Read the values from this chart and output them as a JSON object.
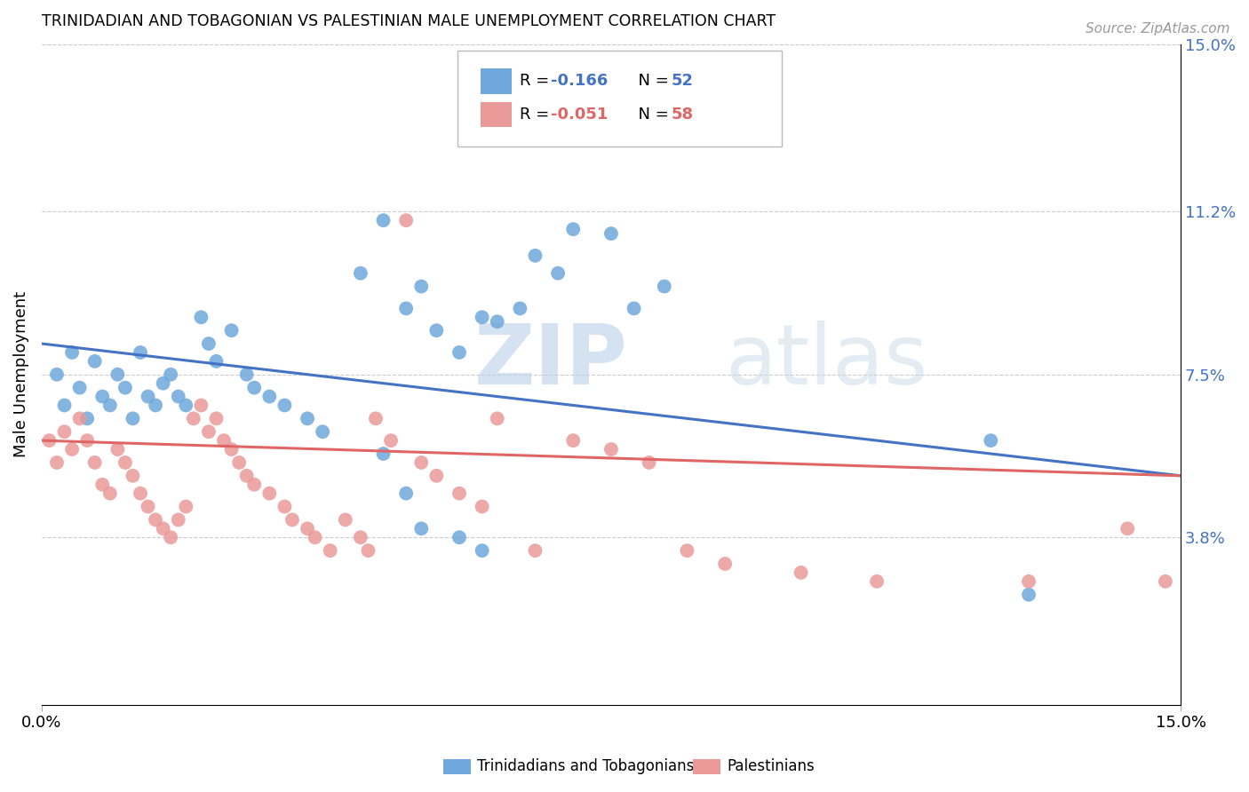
{
  "title": "TRINIDADIAN AND TOBAGONIAN VS PALESTINIAN MALE UNEMPLOYMENT CORRELATION CHART",
  "source": "Source: ZipAtlas.com",
  "ylabel": "Male Unemployment",
  "xlim": [
    0.0,
    0.15
  ],
  "ylim": [
    0.0,
    0.15
  ],
  "ytick_labels_right": [
    "15.0%",
    "11.2%",
    "7.5%",
    "3.8%"
  ],
  "ytick_values_right": [
    0.15,
    0.112,
    0.075,
    0.038
  ],
  "blue_color": "#6fa8dc",
  "pink_color": "#ea9999",
  "blue_line_color": "#4472c4",
  "pink_line_color": "#e06666",
  "legend_label_blue": "Trinidadians and Tobagonians",
  "legend_label_pink": "Palestinians",
  "blue_line_x0": 0.0,
  "blue_line_y0": 0.082,
  "blue_line_x1": 0.15,
  "blue_line_y1": 0.052,
  "pink_line_x0": 0.0,
  "pink_line_y0": 0.06,
  "pink_line_x1": 0.15,
  "pink_line_y1": 0.052,
  "background_color": "#ffffff",
  "grid_color": "#cccccc",
  "title_color": "#000000",
  "right_axis_color": "#4472c4",
  "source_color": "#999999",
  "watermark_color": "#d0dff0"
}
